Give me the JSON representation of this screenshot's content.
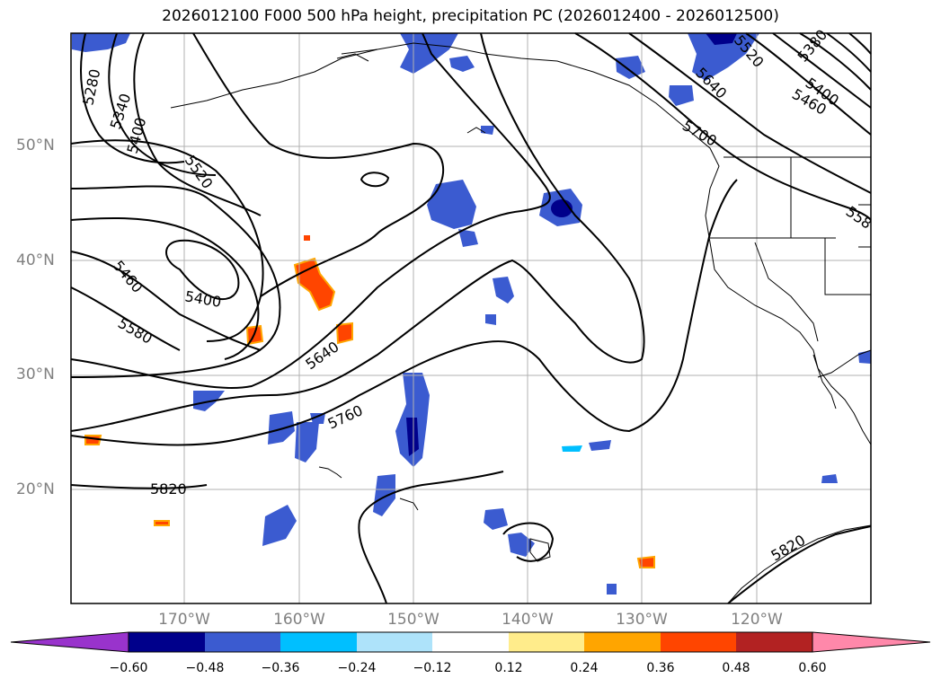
{
  "title": "2026012100 F000 500 hPa height, precipitation PC (2026012400 - 2026012500)",
  "map": {
    "lon_range": [
      -180,
      -110
    ],
    "lat_range": [
      10,
      60
    ],
    "lat_labels": [
      "50°N",
      "40°N",
      "30°N",
      "20°N"
    ],
    "lon_labels": [
      "170°W",
      "160°W",
      "150°W",
      "140°W",
      "130°W",
      "120°W"
    ],
    "grid": true,
    "contour_labels": [
      "5280",
      "5340",
      "5400",
      "5520",
      "5460",
      "5400",
      "5580",
      "5640",
      "5760",
      "5820",
      "5520",
      "5640",
      "5700",
      "5380",
      "5400",
      "5460",
      "5820",
      "558"
    ],
    "contour_color": "#000000"
  },
  "colorbar": {
    "colors": [
      "#9933cc",
      "#00008b",
      "#3b5bd0",
      "#00bfff",
      "#aee3fa",
      "#ffffff",
      "#ffec8b",
      "#ffa500",
      "#ff4500",
      "#b22222",
      "#ff88aa"
    ],
    "tick_labels": [
      "−0.60",
      "−0.48",
      "−0.36",
      "−0.24",
      "−0.12",
      "0.12",
      "0.24",
      "0.36",
      "0.48",
      "0.60"
    ],
    "extend": "both"
  }
}
